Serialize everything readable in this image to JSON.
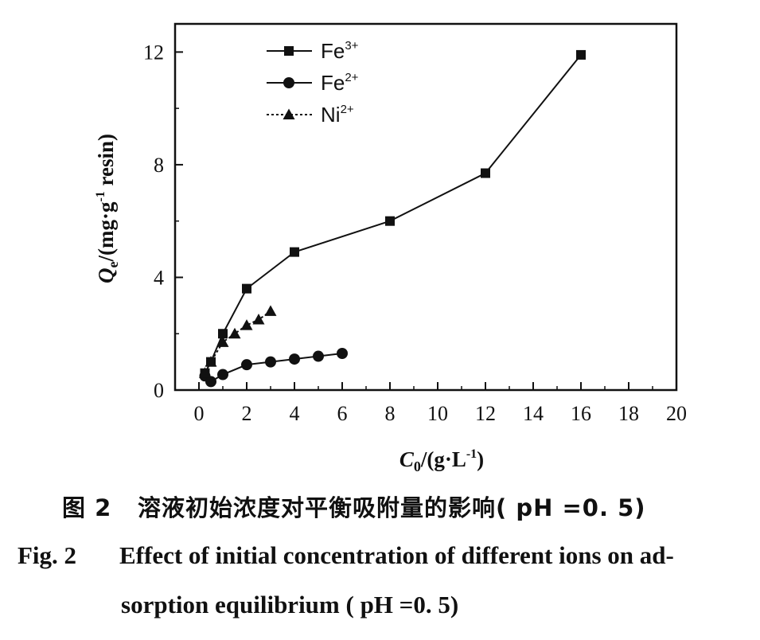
{
  "chart_data": {
    "type": "line",
    "xlabel": "C0/(g·L-1)",
    "xlabel_parts": {
      "main": "C",
      "sub": "0",
      "rest": "/(g·L",
      "sup": "-1",
      "end": ")"
    },
    "ylabel": "Qe/(mg·g-1 resin)",
    "ylabel_parts": {
      "main": "Q",
      "sub": "e",
      "rest": "/(mg·g",
      "sup": "-1",
      "end": " resin)"
    },
    "xlim": [
      -1,
      20
    ],
    "ylim": [
      0,
      13
    ],
    "xticks": [
      "0",
      "2",
      "4",
      "6",
      "8",
      "10",
      "12",
      "14",
      "16",
      "18",
      "20"
    ],
    "yticks": [
      "0",
      "4",
      "8",
      "12"
    ],
    "legend_position": "top-left",
    "series": [
      {
        "name": "Fe3+",
        "name_base": "Fe",
        "name_sup": "3+",
        "marker": "square",
        "x": [
          0.25,
          0.5,
          1,
          2,
          4,
          8,
          12,
          16
        ],
        "y": [
          0.6,
          1.0,
          2.0,
          3.6,
          4.9,
          6.0,
          7.7,
          11.9
        ]
      },
      {
        "name": "Fe2+",
        "name_base": "Fe",
        "name_sup": "2+",
        "marker": "circle",
        "x": [
          0.25,
          0.5,
          1,
          2,
          3,
          4,
          5,
          6
        ],
        "y": [
          0.5,
          0.3,
          0.55,
          0.9,
          1.0,
          1.1,
          1.2,
          1.3
        ]
      },
      {
        "name": "Ni2+",
        "name_base": "Ni",
        "name_sup": "2+",
        "marker": "triangle",
        "x": [
          0.25,
          0.5,
          1,
          1.5,
          2,
          2.5,
          3
        ],
        "y": [
          0.6,
          1.0,
          1.7,
          2.0,
          2.3,
          2.5,
          2.8
        ]
      }
    ]
  },
  "caption": {
    "cn_number": "图 2",
    "cn_text": "溶液初始浓度对平衡吸附量的影响( pH =0. 5)",
    "en_number": "Fig. 2",
    "en_line1": "Effect of initial concentration of different ions on ad-",
    "en_line2": "sorption equilibrium ( pH =0. 5)"
  }
}
